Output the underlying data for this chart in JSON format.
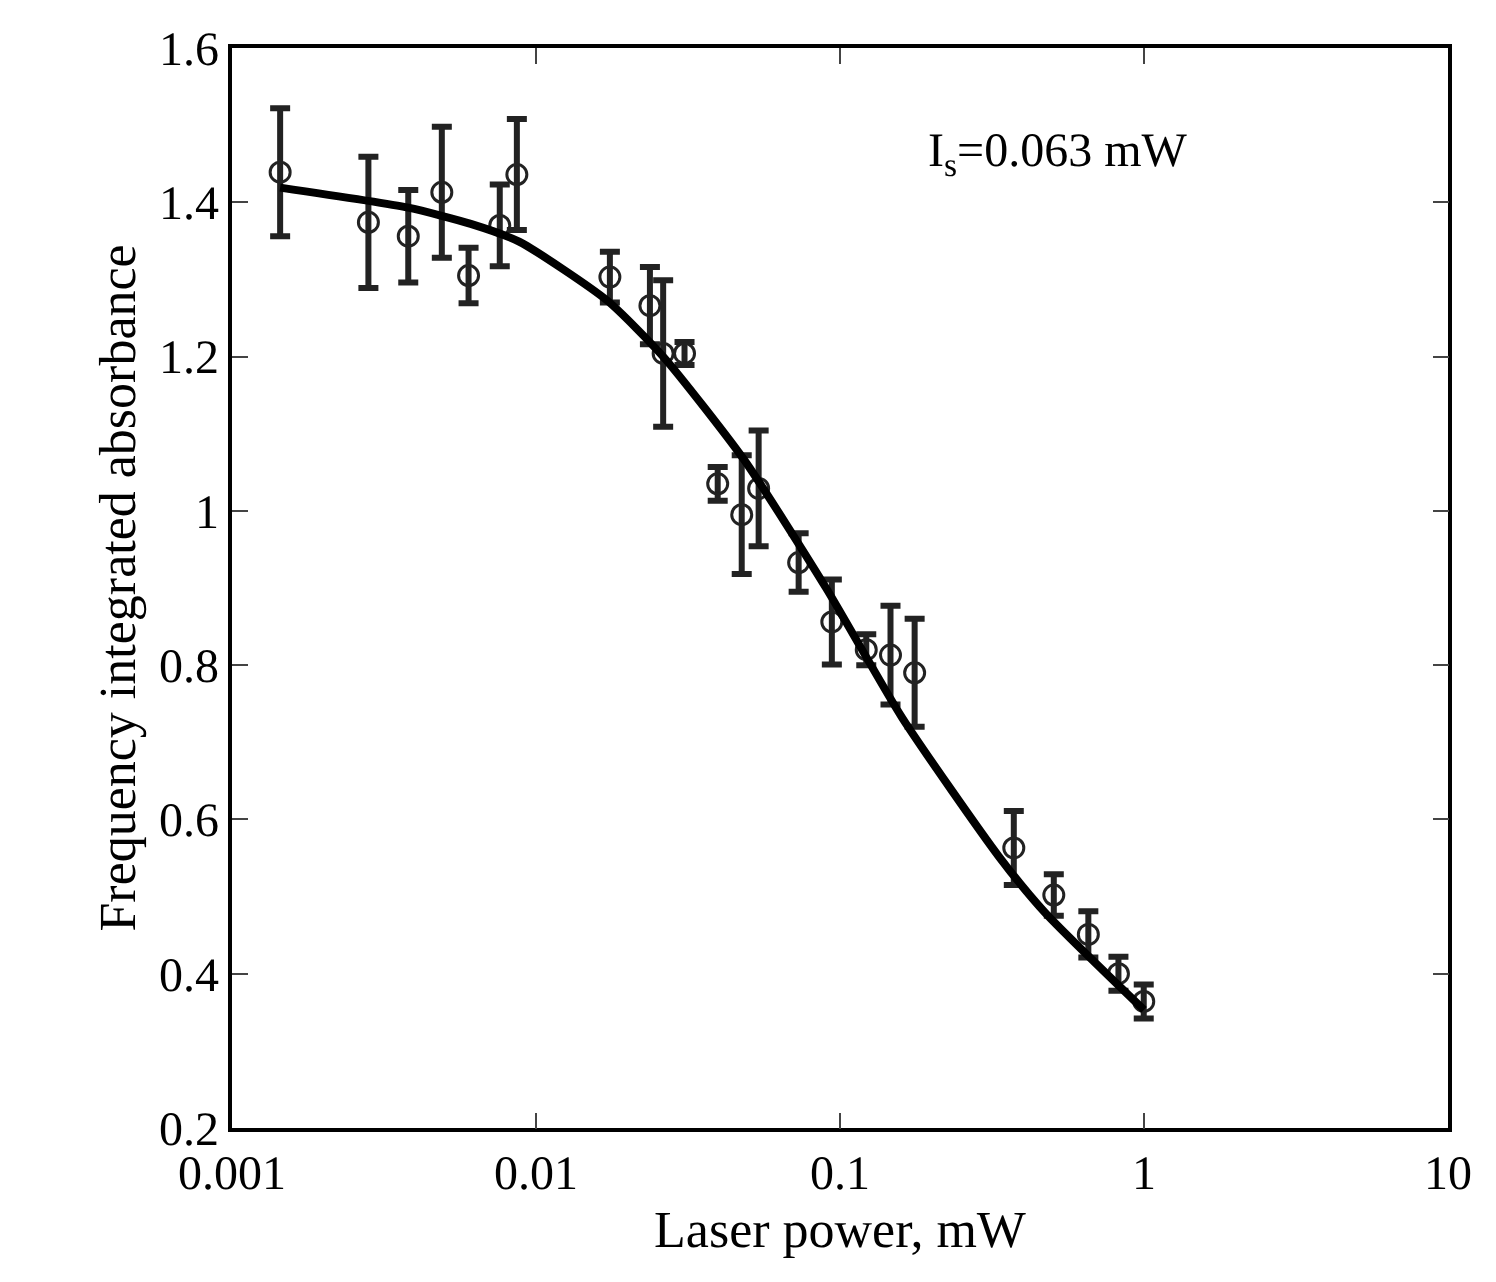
{
  "chart_data": {
    "type": "scatter",
    "xlabel": "Laser power, mW",
    "ylabel": "Frequency integrated absorbance",
    "log": "x",
    "xlim": [
      0.001,
      10
    ],
    "xticks": [
      0.001,
      0.01,
      0.1,
      1,
      10
    ],
    "ylim": [
      0.2,
      1.6
    ],
    "yticks": [
      0.2,
      0.4,
      0.6,
      0.8,
      1,
      1.2,
      1.4,
      1.6
    ],
    "annotations": [
      "I$_{s}$=0.063 mW"
    ],
    "series": [
      {
        "color": "#222222",
        "marker": "circle",
        "x": [
          0.00144,
          0.00281,
          0.0038,
          0.0049,
          0.006,
          0.0076,
          0.00865,
          0.0175,
          0.0237,
          0.0262,
          0.0308,
          0.0396,
          0.0475,
          0.054,
          0.0731,
          0.094,
          0.122,
          0.1466,
          0.176,
          0.373,
          0.505,
          0.656,
          0.824,
          0.998
        ],
        "values": [
          1.439,
          1.374,
          1.356,
          1.413,
          1.305,
          1.37,
          1.436,
          1.303,
          1.266,
          1.204,
          1.204,
          1.035,
          0.995,
          1.029,
          0.933,
          0.856,
          0.82,
          0.813,
          0.79,
          0.563,
          0.502,
          0.451,
          0.4,
          0.364
        ],
        "errors": [
          0.083,
          0.085,
          0.06,
          0.085,
          0.036,
          0.053,
          0.072,
          0.033,
          0.05,
          0.095,
          0.015,
          0.022,
          0.077,
          0.075,
          0.038,
          0.055,
          0.02,
          0.064,
          0.07,
          0.048,
          0.027,
          0.03,
          0.022,
          0.022
        ]
      },
      {
        "type": "line",
        "color": "#000000",
        "line_style": "solid",
        "marker": "none",
        "x": [
          0.00144,
          0.0038,
          0.0061,
          0.0088,
          0.0171,
          0.0262,
          0.0482,
          0.09,
          0.16,
          0.333,
          0.473,
          1.0
        ],
        "values": [
          1.419,
          1.393,
          1.372,
          1.349,
          1.273,
          1.2,
          1.067,
          0.9,
          0.732,
          0.552,
          0.479,
          0.353
        ]
      }
    ]
  }
}
